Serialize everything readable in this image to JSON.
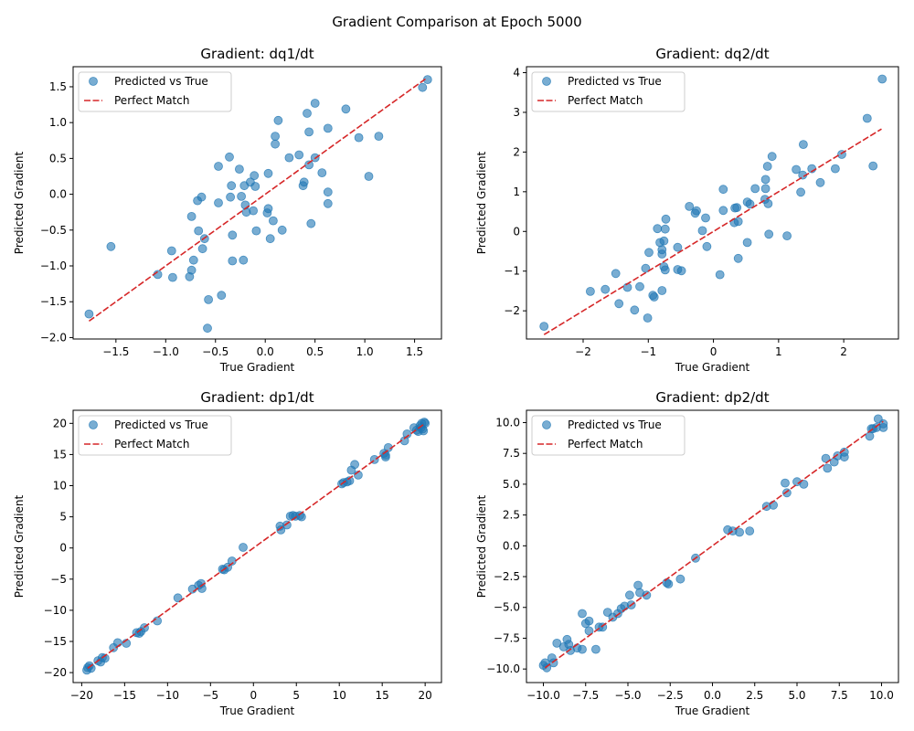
{
  "figure": {
    "title": "Gradient Comparison at Epoch 5000"
  },
  "legend": {
    "scatter_label": "Predicted vs True",
    "line_label": "Perfect Match"
  },
  "colors": {
    "points": "#1f77b4",
    "line": "#d62728"
  },
  "chart_data": [
    {
      "type": "scatter",
      "title": "Gradient: dq1/dt",
      "xlabel": "True Gradient",
      "ylabel": "Predicted Gradient",
      "xlim": [
        -1.93,
        1.77
      ],
      "ylim": [
        -2.02,
        1.78
      ],
      "xticks": [
        -1.5,
        -1.0,
        -0.5,
        0.0,
        0.5,
        1.0,
        1.5
      ],
      "xtick_labels": [
        "−1.5",
        "−1.0",
        "−0.5",
        "0.0",
        "0.5",
        "1.0",
        "1.5"
      ],
      "yticks": [
        -2.0,
        -1.5,
        -1.0,
        -0.5,
        0.0,
        0.5,
        1.0,
        1.5
      ],
      "ytick_labels": [
        "−2.0",
        "−1.5",
        "−1.0",
        "−0.5",
        "0.0",
        "0.5",
        "1.0",
        "1.5"
      ],
      "legend_position": "top-left",
      "line": [
        [
          -1.77,
          -1.77
        ],
        [
          1.62,
          1.62
        ]
      ],
      "points": [
        [
          -1.77,
          -1.67
        ],
        [
          -1.55,
          -0.73
        ],
        [
          -1.08,
          -1.12
        ],
        [
          -0.94,
          -0.79
        ],
        [
          -0.93,
          -1.16
        ],
        [
          -0.76,
          -1.15
        ],
        [
          -0.74,
          -1.06
        ],
        [
          -0.74,
          -0.31
        ],
        [
          -0.72,
          -0.92
        ],
        [
          -0.68,
          -0.09
        ],
        [
          -0.67,
          -0.51
        ],
        [
          -0.64,
          -0.04
        ],
        [
          -0.63,
          -0.76
        ],
        [
          -0.61,
          -0.62
        ],
        [
          -0.57,
          -1.47
        ],
        [
          -0.58,
          -1.87
        ],
        [
          -0.47,
          0.39
        ],
        [
          -0.47,
          -0.12
        ],
        [
          -0.44,
          -1.41
        ],
        [
          -0.36,
          0.52
        ],
        [
          -0.35,
          -0.04
        ],
        [
          -0.34,
          0.12
        ],
        [
          -0.33,
          -0.57
        ],
        [
          -0.33,
          -0.93
        ],
        [
          -0.26,
          0.35
        ],
        [
          -0.24,
          -0.03
        ],
        [
          -0.22,
          -0.92
        ],
        [
          -0.21,
          0.12
        ],
        [
          -0.2,
          -0.15
        ],
        [
          -0.19,
          -0.25
        ],
        [
          -0.15,
          0.17
        ],
        [
          -0.12,
          -0.23
        ],
        [
          -0.11,
          0.26
        ],
        [
          -0.1,
          0.11
        ],
        [
          -0.09,
          -0.51
        ],
        [
          0.03,
          0.29
        ],
        [
          0.02,
          -0.26
        ],
        [
          0.03,
          -0.2
        ],
        [
          0.05,
          -0.62
        ],
        [
          0.08,
          -0.37
        ],
        [
          0.1,
          0.81
        ],
        [
          0.1,
          0.7
        ],
        [
          0.13,
          1.03
        ],
        [
          0.17,
          -0.5
        ],
        [
          0.24,
          0.51
        ],
        [
          0.34,
          0.55
        ],
        [
          0.38,
          0.12
        ],
        [
          0.39,
          0.17
        ],
        [
          0.42,
          1.13
        ],
        [
          0.44,
          0.87
        ],
        [
          0.44,
          0.41
        ],
        [
          0.46,
          -0.41
        ],
        [
          0.5,
          1.27
        ],
        [
          0.5,
          0.51
        ],
        [
          0.57,
          0.3
        ],
        [
          0.63,
          0.92
        ],
        [
          0.63,
          0.03
        ],
        [
          0.63,
          -0.13
        ],
        [
          0.81,
          1.19
        ],
        [
          0.94,
          0.79
        ],
        [
          1.04,
          0.25
        ],
        [
          1.14,
          0.81
        ],
        [
          1.58,
          1.49
        ],
        [
          1.63,
          1.6
        ]
      ]
    },
    {
      "type": "scatter",
      "title": "Gradient: dq2/dt",
      "xlabel": "True Gradient",
      "ylabel": "Predicted Gradient",
      "xlim": [
        -2.87,
        2.84
      ],
      "ylim": [
        -2.71,
        4.15
      ],
      "xticks": [
        -2,
        -1,
        0,
        1,
        2
      ],
      "xtick_labels": [
        "−2",
        "−1",
        "0",
        "1",
        "2"
      ],
      "yticks": [
        -2,
        -1,
        0,
        1,
        2,
        3,
        4
      ],
      "ytick_labels": [
        "−2",
        "−1",
        "0",
        "1",
        "2",
        "3",
        "4"
      ],
      "legend_position": "top-left",
      "line": [
        [
          -2.6,
          -2.6
        ],
        [
          2.58,
          2.58
        ]
      ],
      "points": [
        [
          -2.6,
          -2.39
        ],
        [
          -1.89,
          -1.51
        ],
        [
          -1.66,
          -1.46
        ],
        [
          -1.5,
          -1.06
        ],
        [
          -1.45,
          -1.82
        ],
        [
          -1.32,
          -1.41
        ],
        [
          -1.21,
          -1.98
        ],
        [
          -1.13,
          -1.39
        ],
        [
          -1.04,
          -0.93
        ],
        [
          -1.01,
          -2.18
        ],
        [
          -0.99,
          -0.53
        ],
        [
          -0.93,
          -1.61
        ],
        [
          -0.91,
          -1.65
        ],
        [
          -0.86,
          0.07
        ],
        [
          -0.82,
          -0.28
        ],
        [
          -0.79,
          -1.49
        ],
        [
          -0.79,
          -0.46
        ],
        [
          -0.79,
          -0.57
        ],
        [
          -0.76,
          -0.89
        ],
        [
          -0.74,
          -0.97
        ],
        [
          -0.74,
          0.06
        ],
        [
          -0.73,
          0.31
        ],
        [
          -0.76,
          -0.24
        ],
        [
          -0.55,
          -0.96
        ],
        [
          -0.55,
          -0.4
        ],
        [
          -0.49,
          -0.99
        ],
        [
          -0.37,
          0.63
        ],
        [
          -0.28,
          0.46
        ],
        [
          -0.26,
          0.52
        ],
        [
          -0.17,
          0.02
        ],
        [
          -0.12,
          0.34
        ],
        [
          -0.1,
          -0.38
        ],
        [
          0.1,
          -1.09
        ],
        [
          0.15,
          1.06
        ],
        [
          0.15,
          0.53
        ],
        [
          0.32,
          0.22
        ],
        [
          0.33,
          0.59
        ],
        [
          0.36,
          0.6
        ],
        [
          0.38,
          0.25
        ],
        [
          0.38,
          -0.68
        ],
        [
          0.52,
          0.74
        ],
        [
          0.52,
          -0.28
        ],
        [
          0.56,
          0.69
        ],
        [
          0.64,
          1.08
        ],
        [
          0.79,
          0.81
        ],
        [
          0.8,
          1.31
        ],
        [
          0.8,
          1.08
        ],
        [
          0.83,
          1.64
        ],
        [
          0.84,
          0.7
        ],
        [
          0.85,
          -0.07
        ],
        [
          0.9,
          1.89
        ],
        [
          1.13,
          -0.11
        ],
        [
          1.27,
          1.56
        ],
        [
          1.34,
          0.99
        ],
        [
          1.37,
          1.42
        ],
        [
          1.38,
          2.19
        ],
        [
          1.51,
          1.58
        ],
        [
          1.64,
          1.23
        ],
        [
          1.87,
          1.58
        ],
        [
          1.97,
          1.94
        ],
        [
          2.36,
          2.85
        ],
        [
          2.45,
          1.65
        ],
        [
          2.59,
          3.84
        ]
      ]
    },
    {
      "type": "scatter",
      "title": "Gradient: dp1/dt",
      "xlabel": "True Gradient",
      "ylabel": "Predicted Gradient",
      "xlim": [
        -21.0,
        21.9
      ],
      "ylim": [
        -21.6,
        22.1
      ],
      "xticks": [
        -20,
        -15,
        -10,
        -5,
        0,
        5,
        10,
        15,
        20
      ],
      "xtick_labels": [
        "−20",
        "−15",
        "−10",
        "−5",
        "0",
        "5",
        "10",
        "15",
        "20"
      ],
      "yticks": [
        -20,
        -15,
        -10,
        -5,
        0,
        5,
        10,
        15,
        20
      ],
      "ytick_labels": [
        "−20",
        "−15",
        "−10",
        "−5",
        "0",
        "5",
        "10",
        "15",
        "20"
      ],
      "legend_position": "top-left",
      "line": [
        [
          -19.3,
          -19.3
        ],
        [
          19.9,
          19.9
        ]
      ],
      "points": [
        [
          -19.4,
          -19.6
        ],
        [
          -19.3,
          -19.2
        ],
        [
          -19.1,
          -18.9
        ],
        [
          -18.9,
          -19.3
        ],
        [
          -18.1,
          -18.1
        ],
        [
          -17.8,
          -18.3
        ],
        [
          -17.6,
          -17.6
        ],
        [
          -17.3,
          -17.7
        ],
        [
          -16.3,
          -16
        ],
        [
          -15.8,
          -15.2
        ],
        [
          -14.8,
          -15.3
        ],
        [
          -13.6,
          -13.6
        ],
        [
          -13.3,
          -13.7
        ],
        [
          -13.1,
          -13.4
        ],
        [
          -12.7,
          -12.8
        ],
        [
          -11.2,
          -11.7
        ],
        [
          -8.8,
          -8
        ],
        [
          -7.1,
          -6.6
        ],
        [
          -6.4,
          -6
        ],
        [
          -6.1,
          -5.7
        ],
        [
          -6,
          -6.5
        ],
        [
          -3.6,
          -3.4
        ],
        [
          -3.4,
          -3.5
        ],
        [
          -3,
          -3.1
        ],
        [
          -2.5,
          -2.1
        ],
        [
          -1.2,
          0.1
        ],
        [
          3.1,
          3.5
        ],
        [
          3.2,
          2.9
        ],
        [
          3.9,
          3.7
        ],
        [
          4.3,
          5.1
        ],
        [
          4.6,
          5.2
        ],
        [
          4.9,
          5.1
        ],
        [
          5.4,
          5.2
        ],
        [
          5.6,
          5
        ],
        [
          10.3,
          10.3
        ],
        [
          10.5,
          10.5
        ],
        [
          10.9,
          10.6
        ],
        [
          11.2,
          10.8
        ],
        [
          11.4,
          12.5
        ],
        [
          11.8,
          13.4
        ],
        [
          12.2,
          11.7
        ],
        [
          14.1,
          14.2
        ],
        [
          15.2,
          15.2
        ],
        [
          15.4,
          14.9
        ],
        [
          15.4,
          14.6
        ],
        [
          15.7,
          16.1
        ],
        [
          17.6,
          17.2
        ],
        [
          17.9,
          18.3
        ],
        [
          18.7,
          19.3
        ],
        [
          19,
          18.9
        ],
        [
          19.2,
          18.7
        ],
        [
          19.4,
          19.6
        ],
        [
          19.5,
          19.3
        ],
        [
          19.6,
          20
        ],
        [
          19.7,
          19.1
        ],
        [
          19.8,
          18.8
        ],
        [
          19.9,
          20.2
        ],
        [
          20,
          20
        ]
      ]
    },
    {
      "type": "scatter",
      "title": "Gradient: dp2/dt",
      "xlabel": "True Gradient",
      "ylabel": "Predicted Gradient",
      "xlim": [
        -11.0,
        11.0
      ],
      "ylim": [
        -11.1,
        11.0
      ],
      "xticks": [
        -10.0,
        -7.5,
        -5.0,
        -2.5,
        0.0,
        2.5,
        5.0,
        7.5,
        10.0
      ],
      "xtick_labels": [
        "−10.0",
        "−7.5",
        "−5.0",
        "−2.5",
        "0.0",
        "2.5",
        "5.0",
        "7.5",
        "10.0"
      ],
      "yticks": [
        -10.0,
        -7.5,
        -5.0,
        -2.5,
        0.0,
        2.5,
        5.0,
        7.5,
        10.0
      ],
      "ytick_labels": [
        "−10.0",
        "−7.5",
        "−5.0",
        "−2.5",
        "0.0",
        "2.5",
        "5.0",
        "7.5",
        "10.0"
      ],
      "legend_position": "top-left",
      "line": [
        [
          -9.9,
          -9.9
        ],
        [
          10.1,
          10.1
        ]
      ],
      "points": [
        [
          -10,
          -9.7
        ],
        [
          -9.9,
          -9.5
        ],
        [
          -9.8,
          -9.9
        ],
        [
          -9.5,
          -9.1
        ],
        [
          -9.4,
          -9.5
        ],
        [
          -9.2,
          -7.9
        ],
        [
          -8.8,
          -8.2
        ],
        [
          -8.6,
          -7.6
        ],
        [
          -8.5,
          -8
        ],
        [
          -8.4,
          -8.5
        ],
        [
          -8,
          -8.3
        ],
        [
          -7.7,
          -5.5
        ],
        [
          -7.7,
          -8.4
        ],
        [
          -7.5,
          -6.3
        ],
        [
          -7.3,
          -6.9
        ],
        [
          -7.3,
          -6.1
        ],
        [
          -6.9,
          -8.4
        ],
        [
          -6.7,
          -6.6
        ],
        [
          -6.5,
          -6.6
        ],
        [
          -6.2,
          -5.4
        ],
        [
          -5.9,
          -5.8
        ],
        [
          -5.6,
          -5.5
        ],
        [
          -5.4,
          -5.1
        ],
        [
          -5.2,
          -4.9
        ],
        [
          -4.9,
          -4
        ],
        [
          -4.8,
          -4.8
        ],
        [
          -4.4,
          -3.2
        ],
        [
          -4.3,
          -3.8
        ],
        [
          -3.9,
          -4
        ],
        [
          -2.7,
          -3
        ],
        [
          -2.6,
          -3.1
        ],
        [
          -1.9,
          -2.7
        ],
        [
          -1,
          -1
        ],
        [
          0.9,
          1.3
        ],
        [
          1.2,
          1.2
        ],
        [
          1.6,
          1.1
        ],
        [
          2.2,
          1.2
        ],
        [
          3.2,
          3.2
        ],
        [
          3.6,
          3.3
        ],
        [
          4.3,
          5.1
        ],
        [
          4.4,
          4.3
        ],
        [
          5,
          5.2
        ],
        [
          5.4,
          5
        ],
        [
          6.7,
          7.1
        ],
        [
          6.8,
          6.3
        ],
        [
          7.2,
          6.8
        ],
        [
          7.4,
          7.3
        ],
        [
          7.8,
          7.2
        ],
        [
          7.8,
          7.6
        ],
        [
          9.3,
          8.9
        ],
        [
          9.4,
          9.5
        ],
        [
          9.5,
          9.5
        ],
        [
          9.7,
          9.6
        ],
        [
          9.8,
          10.3
        ],
        [
          10.1,
          9.6
        ],
        [
          10.1,
          9.9
        ]
      ]
    }
  ]
}
